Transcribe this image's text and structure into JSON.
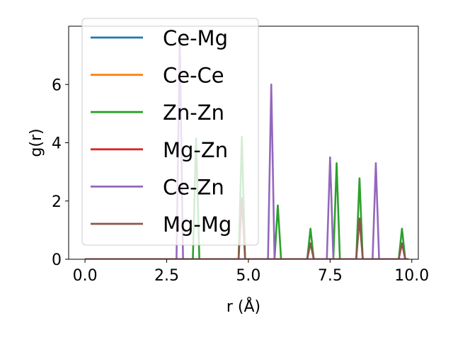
{
  "chart_data": {
    "type": "line",
    "title": "",
    "xlabel": "r (Å)",
    "ylabel": "g(r)",
    "xlim": [
      -0.5,
      10.2
    ],
    "ylim": [
      0,
      8.0
    ],
    "xticks": [
      0.0,
      2.5,
      5.0,
      7.5,
      10.0
    ],
    "xtick_labels": [
      "0.0",
      "2.5",
      "5.0",
      "7.5",
      "10.0"
    ],
    "yticks": [
      0,
      2,
      4,
      6
    ],
    "ytick_labels": [
      "0",
      "2",
      "4",
      "6"
    ],
    "grid": false,
    "legend_position": "upper-left",
    "x": [
      0.0,
      0.1,
      0.2,
      0.3,
      0.4,
      0.5,
      0.6,
      0.7,
      0.8,
      0.9,
      1.0,
      1.1,
      1.2,
      1.3,
      1.4,
      1.5,
      1.6,
      1.7,
      1.8,
      1.9,
      2.0,
      2.1,
      2.2,
      2.3,
      2.4,
      2.5,
      2.6,
      2.7,
      2.8,
      2.9,
      3.0,
      3.1,
      3.2,
      3.3,
      3.4,
      3.5,
      3.6,
      3.7,
      3.8,
      3.9,
      4.0,
      4.1,
      4.2,
      4.3,
      4.4,
      4.5,
      4.6,
      4.7,
      4.8,
      4.9,
      5.0,
      5.1,
      5.2,
      5.3,
      5.4,
      5.5,
      5.6,
      5.7,
      5.8,
      5.9,
      6.0,
      6.1,
      6.2,
      6.3,
      6.4,
      6.5,
      6.6,
      6.7,
      6.8,
      6.9,
      7.0,
      7.1,
      7.2,
      7.3,
      7.4,
      7.5,
      7.6,
      7.7,
      7.8,
      7.9,
      8.0,
      8.1,
      8.2,
      8.3,
      8.4,
      8.5,
      8.6,
      8.7,
      8.8,
      8.9,
      9.0,
      9.1,
      9.2,
      9.3,
      9.4,
      9.5,
      9.6,
      9.7,
      9.8,
      9.9
    ],
    "series": [
      {
        "name": "Ce-Mg",
        "color": "#1f77b4",
        "values": [
          0,
          0,
          0,
          0,
          0,
          0,
          0,
          0,
          0,
          0,
          0,
          0,
          0,
          0,
          0,
          0,
          0,
          0,
          0,
          0,
          0,
          0,
          0,
          0,
          0,
          0,
          0,
          0,
          0,
          0,
          0,
          0,
          0,
          0,
          0,
          0,
          0,
          0,
          0,
          0,
          0,
          0,
          0,
          0,
          0,
          0,
          0,
          0,
          0,
          0,
          0,
          0,
          0,
          0,
          0,
          0,
          0,
          0,
          0,
          0,
          0,
          0,
          0,
          0,
          0,
          0,
          0,
          0,
          0,
          0,
          0,
          0,
          0,
          0,
          0,
          0,
          0,
          0,
          0,
          0,
          0,
          0,
          0,
          0,
          0,
          0,
          0,
          0,
          0,
          0,
          0,
          0,
          0,
          0,
          0,
          0,
          0,
          0,
          0,
          0
        ]
      },
      {
        "name": "Ce-Ce",
        "color": "#ff7f0e",
        "values": [
          0,
          0,
          0,
          0,
          0,
          0,
          0,
          0,
          0,
          0,
          0,
          0,
          0,
          0,
          0,
          0,
          0,
          0,
          0,
          0,
          0,
          0,
          0,
          0,
          0,
          0,
          0,
          0,
          0,
          0,
          0,
          0,
          0,
          0,
          0,
          0,
          0,
          0,
          0,
          0,
          0,
          0,
          0,
          0,
          0,
          0,
          0,
          0,
          0,
          0,
          0,
          0,
          0,
          0,
          0,
          0,
          0,
          0,
          0,
          0,
          0,
          0,
          0,
          0,
          0,
          0,
          0,
          0,
          0,
          0,
          0,
          0,
          0,
          0,
          0,
          0,
          0,
          0,
          0,
          0,
          0,
          0,
          0,
          0,
          0,
          0,
          0,
          0,
          0,
          0,
          0,
          0,
          0,
          0,
          0,
          0,
          0,
          0,
          0,
          0
        ]
      },
      {
        "name": "Zn-Zn",
        "color": "#2ca02c",
        "values": [
          0,
          0,
          0,
          0,
          0,
          0,
          0,
          0,
          0,
          0,
          0,
          0,
          0,
          0,
          0,
          0,
          0,
          0,
          0,
          0,
          0,
          0,
          0,
          0,
          0,
          0,
          0,
          0,
          0,
          0,
          0,
          0,
          0,
          0,
          4.15,
          0,
          0,
          0,
          0,
          0,
          0,
          0,
          0,
          0,
          0,
          0,
          0,
          0,
          4.2,
          0,
          0,
          0,
          0,
          0,
          0,
          0,
          0,
          0,
          0,
          1.85,
          0,
          0,
          0,
          0,
          0,
          0,
          0,
          0,
          0,
          1.05,
          0,
          0,
          0,
          0,
          0,
          0,
          0,
          3.3,
          0,
          0,
          0,
          0,
          0,
          0,
          2.78,
          0,
          0,
          0,
          0,
          0,
          0,
          0,
          0,
          0,
          0,
          0,
          0,
          1.05,
          0,
          0
        ]
      },
      {
        "name": "Mg-Zn",
        "color": "#d62728",
        "values": [
          0,
          0,
          0,
          0,
          0,
          0,
          0,
          0,
          0,
          0,
          0,
          0,
          0,
          0,
          0,
          0,
          0,
          0,
          0,
          0,
          0,
          0,
          0,
          0,
          0,
          0,
          0,
          0,
          0,
          0,
          0,
          0,
          0,
          0,
          0,
          0,
          0,
          0,
          0,
          0,
          0,
          0,
          0,
          0,
          0,
          0,
          0,
          0,
          0,
          0,
          0,
          0,
          0,
          0,
          0,
          0,
          0,
          0,
          0,
          0,
          0,
          0,
          0,
          0,
          0,
          0,
          0,
          0,
          0,
          0,
          0,
          0,
          0,
          0,
          0,
          0,
          0,
          0,
          0,
          0,
          0,
          0,
          0,
          0,
          0,
          0,
          0,
          0,
          0,
          0,
          0,
          0,
          0,
          0,
          0,
          0,
          0,
          0,
          0,
          0
        ]
      },
      {
        "name": "Ce-Zn",
        "color": "#9467bd",
        "values": [
          0,
          0,
          0,
          0,
          0,
          0,
          0,
          0,
          0,
          0,
          0,
          0,
          0,
          0,
          0,
          0,
          0,
          0,
          0,
          0,
          0,
          0,
          0,
          0,
          0,
          0,
          0,
          0,
          0,
          7.6,
          0,
          0,
          0,
          0,
          0,
          0,
          0,
          0,
          0,
          0,
          0,
          0,
          0,
          0,
          0,
          0,
          0,
          0,
          0,
          0,
          0,
          0,
          0,
          0,
          0,
          0,
          0,
          6.0,
          0,
          0,
          0,
          0,
          0,
          0,
          0,
          0,
          0,
          0,
          0,
          0,
          0,
          0,
          0,
          0,
          0,
          3.5,
          0,
          0,
          0,
          0,
          0,
          0,
          0,
          0,
          0,
          0,
          0,
          0,
          0,
          3.3,
          0,
          0,
          0,
          0,
          0,
          0,
          0,
          0,
          0,
          0
        ]
      },
      {
        "name": "Mg-Mg",
        "color": "#8c564b",
        "values": [
          0,
          0,
          0,
          0,
          0,
          0,
          0,
          0,
          0,
          0,
          0,
          0,
          0,
          0,
          0,
          0,
          0,
          0,
          0,
          0,
          0,
          0,
          0,
          0,
          0,
          0,
          0,
          0,
          0,
          0,
          0,
          0,
          0,
          0,
          0,
          0,
          0,
          0,
          0,
          0,
          0,
          0,
          0,
          0,
          0,
          0,
          0,
          0,
          2.1,
          0,
          0,
          0,
          0,
          0,
          0,
          0,
          0,
          0,
          0,
          0,
          0,
          0,
          0,
          0,
          0,
          0,
          0,
          0,
          0,
          0.55,
          0,
          0,
          0,
          0,
          0,
          0,
          0,
          0,
          0,
          0,
          0,
          0,
          0,
          0,
          1.4,
          0,
          0,
          0,
          0,
          0,
          0,
          0,
          0,
          0,
          0,
          0,
          0,
          0.55,
          0,
          0
        ]
      }
    ]
  }
}
